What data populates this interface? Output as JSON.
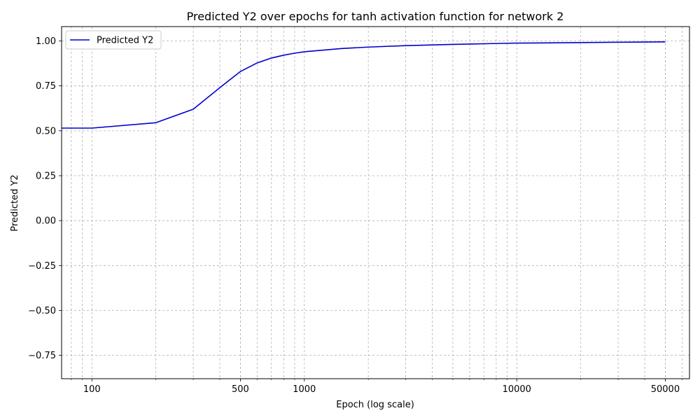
{
  "chart_data": {
    "type": "line",
    "title": "Predicted Y2 over epochs for tanh activation function for network 2",
    "xlabel": "Epoch (log scale)",
    "ylabel": "Predicted Y2",
    "xscale": "log",
    "xlim": [
      72,
      65000
    ],
    "ylim": [
      -0.88,
      1.08
    ],
    "xticks": [
      100,
      500,
      1000,
      10000,
      50000
    ],
    "xtick_labels": [
      "100",
      "500",
      "1000",
      "10000",
      "50000"
    ],
    "yticks": [
      -0.75,
      -0.5,
      -0.25,
      0.0,
      0.25,
      0.5,
      0.75,
      1.0
    ],
    "ytick_labels": [
      "−0.75",
      "−0.50",
      "−0.25",
      "0.00",
      "0.25",
      "0.50",
      "0.75",
      "1.00"
    ],
    "grid": true,
    "grid_minor": true,
    "legend": "top-left",
    "series": [
      {
        "name": "Predicted Y2",
        "color": "#0000cc",
        "x": [
          72,
          100,
          200,
          300,
          400,
          500,
          600,
          700,
          800,
          900,
          1000,
          1500,
          2000,
          3000,
          4000,
          5000,
          6000,
          8000,
          10000,
          20000,
          30000,
          50000
        ],
        "y": [
          0.515,
          0.515,
          0.545,
          0.62,
          0.74,
          0.83,
          0.878,
          0.905,
          0.921,
          0.932,
          0.94,
          0.958,
          0.966,
          0.974,
          0.978,
          0.981,
          0.983,
          0.986,
          0.988,
          0.991,
          0.993,
          0.995
        ]
      }
    ]
  }
}
